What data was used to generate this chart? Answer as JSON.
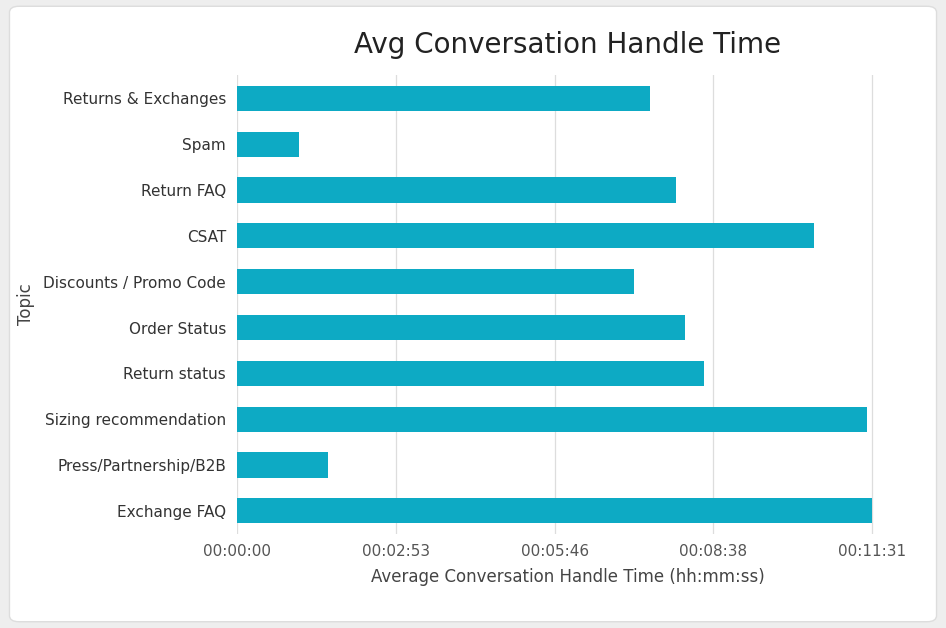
{
  "title": "Avg Conversation Handle Time",
  "xlabel": "Average Conversation Handle Time (hh:mm:ss)",
  "ylabel": "Topic",
  "categories": [
    "Exchange FAQ",
    "Press/Partnership/B2B",
    "Sizing recommendation",
    "Return status",
    "Order Status",
    "Discounts / Promo Code",
    "CSAT",
    "Return FAQ",
    "Spam",
    "Returns & Exchanges"
  ],
  "values_seconds": [
    691,
    100,
    685,
    508,
    488,
    432,
    628,
    478,
    68,
    450
  ],
  "bar_color": "#0daac4",
  "background_color": "#f5f5f5",
  "card_color": "#FFFFFF",
  "xlim_seconds": [
    0,
    720
  ],
  "xtick_seconds": [
    0,
    173,
    346,
    518,
    691
  ],
  "xtick_labels": [
    "00:00:00",
    "00:02:53",
    "00:05:46",
    "00:08:38",
    "00:11:31"
  ],
  "title_fontsize": 20,
  "axis_label_fontsize": 12,
  "tick_fontsize": 11,
  "bar_height": 0.55
}
